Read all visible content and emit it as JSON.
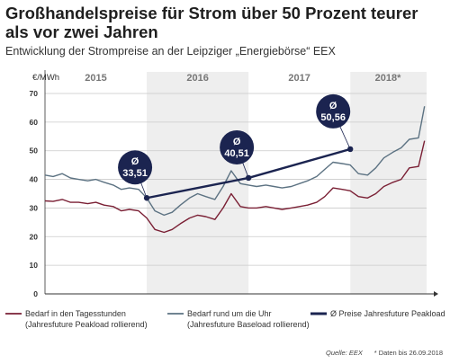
{
  "header": {
    "title": "Großhandelspreise für Strom über 50 Prozent teurer als vor zwei Jahren",
    "subtitle": "Entwicklung der Strompreise an der Leipziger „Energiebörse“ EEX"
  },
  "footer": {
    "source": "Quelle: EEX",
    "note": "* Daten bis 26.09.2018"
  },
  "chart_data": {
    "type": "line",
    "ylabel": "€/MWh",
    "ylim": [
      0,
      70
    ],
    "yticks": [
      0,
      10,
      20,
      30,
      40,
      50,
      60,
      70
    ],
    "xlim": [
      2015.0,
      2018.75
    ],
    "year_labels": [
      {
        "label": "2015",
        "x": 2015.5,
        "shaded": false
      },
      {
        "label": "2016",
        "x": 2016.5,
        "shaded": true
      },
      {
        "label": "2017",
        "x": 2017.5,
        "shaded": false
      },
      {
        "label": "2018*",
        "x": 2018.37,
        "shaded": true
      }
    ],
    "year_bands": [
      {
        "from": 2016.0,
        "to": 2017.0
      },
      {
        "from": 2018.0,
        "to": 2018.75
      }
    ],
    "gridlines": true,
    "series": [
      {
        "name": "Bedarf in den Tagesstunden (Jahresfuture Peakload rollierend)",
        "color": "#7a1f34",
        "x": [
          2015.0,
          2015.08,
          2015.17,
          2015.25,
          2015.33,
          2015.42,
          2015.5,
          2015.58,
          2015.67,
          2015.75,
          2015.83,
          2015.92,
          2016.0,
          2016.08,
          2016.17,
          2016.25,
          2016.33,
          2016.42,
          2016.5,
          2016.58,
          2016.67,
          2016.75,
          2016.83,
          2016.92,
          2017.0,
          2017.08,
          2017.17,
          2017.25,
          2017.33,
          2017.42,
          2017.5,
          2017.58,
          2017.67,
          2017.75,
          2017.83,
          2017.92,
          2018.0,
          2018.08,
          2018.17,
          2018.25,
          2018.33,
          2018.42,
          2018.5,
          2018.58,
          2018.67,
          2018.73
        ],
        "values": [
          32.5,
          32.3,
          33.0,
          32.0,
          32.0,
          31.5,
          32.0,
          31.0,
          30.5,
          29.0,
          29.5,
          29.0,
          26.5,
          22.5,
          21.5,
          22.5,
          24.5,
          26.5,
          27.5,
          27.0,
          26.0,
          30.0,
          35.0,
          30.5,
          30.0,
          30.0,
          30.5,
          30.0,
          29.5,
          30.0,
          30.5,
          31.0,
          32.0,
          34.0,
          37.0,
          36.5,
          36.0,
          34.0,
          33.5,
          35.0,
          37.5,
          39.0,
          40.0,
          44.0,
          44.5,
          53.5
        ]
      },
      {
        "name": "Bedarf rund um die Uhr (Jahresfuture Baseload rollierend)",
        "color": "#5c7282",
        "x": [
          2015.0,
          2015.08,
          2015.17,
          2015.25,
          2015.33,
          2015.42,
          2015.5,
          2015.58,
          2015.67,
          2015.75,
          2015.83,
          2015.92,
          2016.0,
          2016.08,
          2016.17,
          2016.25,
          2016.33,
          2016.42,
          2016.5,
          2016.58,
          2016.67,
          2016.75,
          2016.83,
          2016.92,
          2017.0,
          2017.08,
          2017.17,
          2017.25,
          2017.33,
          2017.42,
          2017.5,
          2017.58,
          2017.67,
          2017.75,
          2017.83,
          2017.92,
          2018.0,
          2018.08,
          2018.17,
          2018.25,
          2018.33,
          2018.42,
          2018.5,
          2018.58,
          2018.67,
          2018.73
        ],
        "values": [
          41.5,
          41.0,
          42.0,
          40.5,
          40.0,
          39.5,
          40.0,
          39.0,
          38.0,
          36.5,
          37.0,
          36.5,
          33.5,
          29.0,
          27.5,
          28.5,
          31.0,
          33.5,
          35.0,
          34.0,
          33.0,
          37.5,
          43.0,
          38.5,
          38.0,
          37.5,
          38.0,
          37.5,
          37.0,
          37.5,
          38.5,
          39.5,
          41.0,
          43.5,
          46.0,
          45.5,
          45.0,
          42.0,
          41.5,
          44.0,
          47.5,
          49.5,
          51.0,
          54.0,
          54.5,
          65.5
        ]
      },
      {
        "name": "Ø Preise Jahresfuture Peakload",
        "color": "#1b2450",
        "x": [
          2016.0,
          2017.0,
          2018.0
        ],
        "values": [
          33.51,
          40.51,
          50.56
        ],
        "badges": [
          "Ø\n33,51",
          "Ø\n40,51",
          "Ø\n50,56"
        ]
      }
    ]
  }
}
